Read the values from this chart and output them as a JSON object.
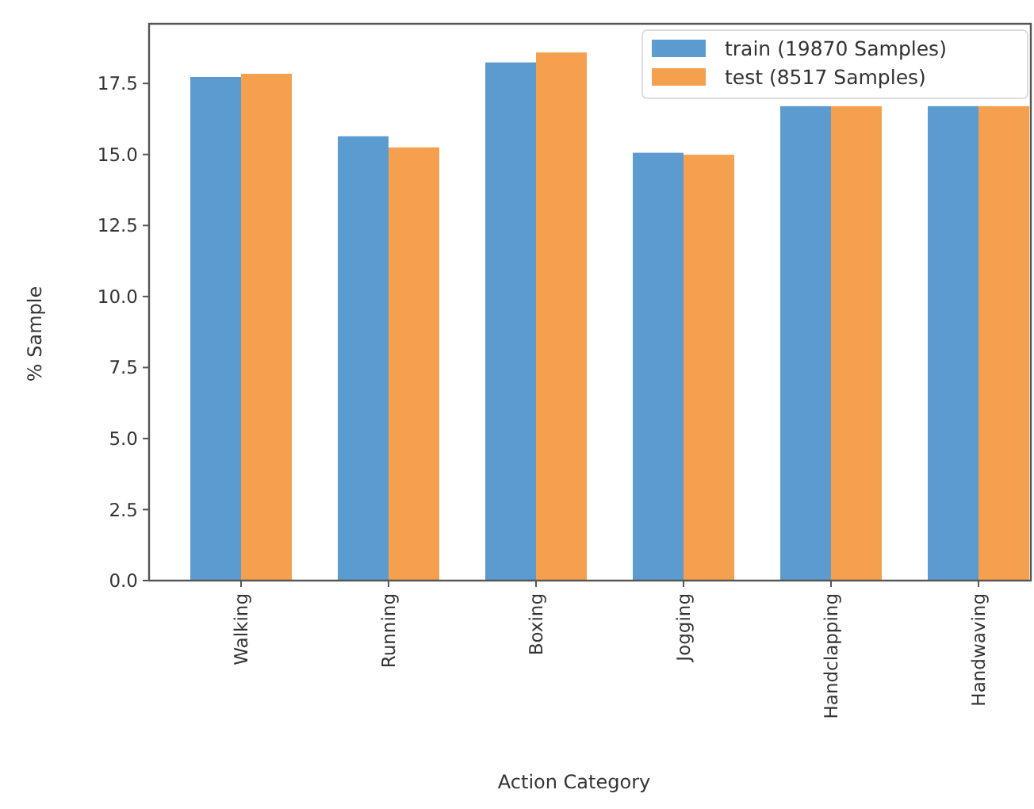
{
  "chart_data": {
    "type": "bar",
    "xlabel": "Action Category",
    "ylabel": "% Sample",
    "categories": [
      "Walking",
      "Running",
      "Boxing",
      "Jogging",
      "Handclapping",
      "Handwaving"
    ],
    "series": [
      {
        "name": "train (19870 Samples)",
        "color": "#5b9bd0",
        "values": [
          17.73,
          15.64,
          18.24,
          15.06,
          16.7,
          16.7
        ]
      },
      {
        "name": "test (8517 Samples)",
        "color": "#f5a04e",
        "values": [
          17.84,
          15.25,
          18.59,
          14.99,
          16.7,
          16.7
        ]
      }
    ],
    "ylim": [
      0,
      19.6
    ],
    "yticks": [
      {
        "value": 0,
        "label": "0.0"
      },
      2.5,
      {
        "value": 5,
        "label": "5.0"
      },
      7.5,
      {
        "value": 10,
        "label": "10.0"
      },
      12.5,
      {
        "value": 15,
        "label": "15.0"
      },
      17.5
    ],
    "legend": "top right"
  }
}
